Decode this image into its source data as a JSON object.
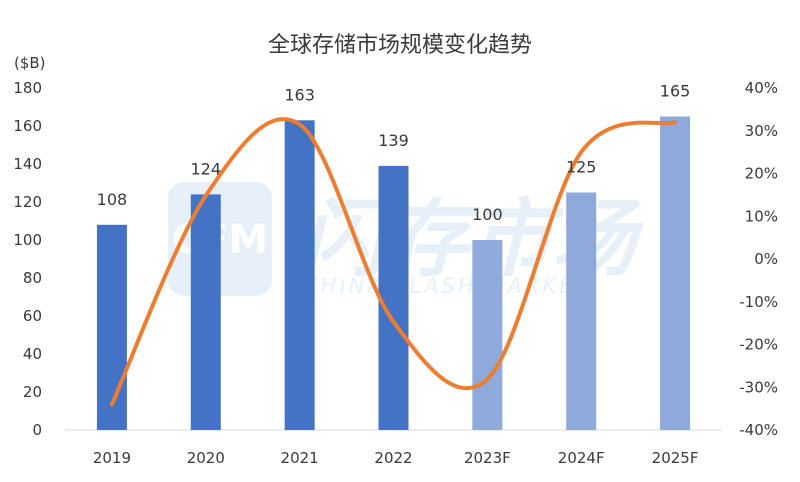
{
  "chart_data": {
    "type": "bar",
    "title": "全球存储市场规模变化趋势",
    "ylabel": "($B)",
    "xlabel": "",
    "categories": [
      "2019",
      "2020",
      "2021",
      "2022",
      "2023F",
      "2024F",
      "2025F"
    ],
    "series": [
      {
        "type": "bar",
        "axis": "left",
        "values": [
          108,
          124,
          163,
          139,
          100,
          125,
          165
        ],
        "color": "#4472C4",
        "forecast_color": "#8EA9DB",
        "forecast_from_index": 4
      },
      {
        "type": "line",
        "axis": "right",
        "smooth": true,
        "values": [
          -34,
          14.8,
          31.5,
          -14.7,
          -28.1,
          25,
          32
        ],
        "color": "#ED7D31"
      }
    ],
    "data_labels": [
      "108",
      "124",
      "163",
      "139",
      "100",
      "125",
      "165"
    ],
    "ylim": [
      0,
      180
    ],
    "y_ticks": [
      "0",
      "20",
      "40",
      "60",
      "80",
      "100",
      "120",
      "140",
      "160",
      "180"
    ],
    "y2lim": [
      -40,
      40
    ],
    "y2_ticks": [
      "-40%",
      "-30%",
      "-20%",
      "-10%",
      "0%",
      "10%",
      "20%",
      "30%",
      "40%"
    ],
    "grid": false,
    "legend": "none",
    "watermark": {
      "logo": "CFM",
      "text_cn": "闪存市场",
      "text_en": "CHINA FLASH MARKET"
    }
  }
}
